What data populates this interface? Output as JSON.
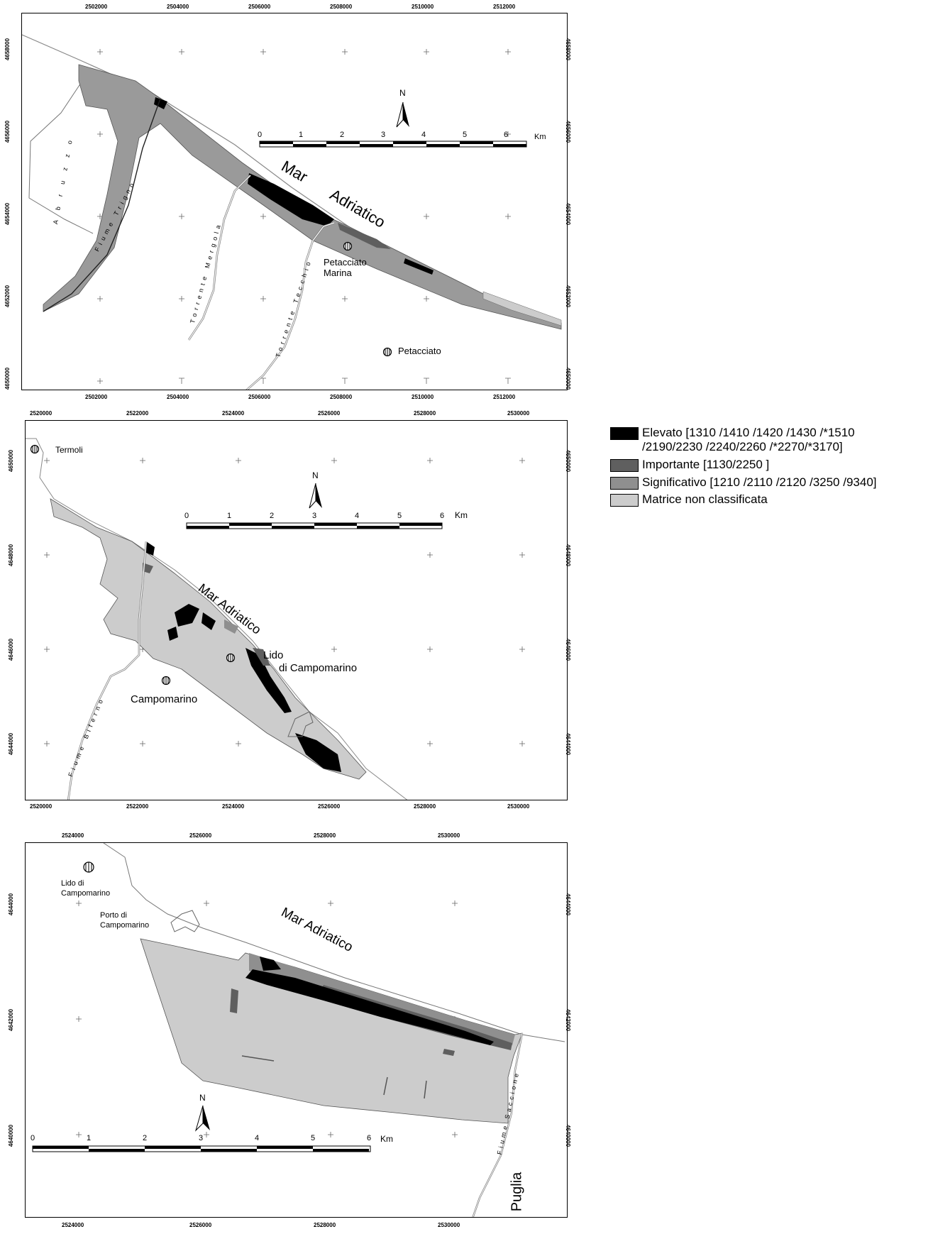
{
  "maps": [
    {
      "id": "map1",
      "top_ticks": [
        "2502000",
        "2504000",
        "2506000",
        "2508000",
        "2510000",
        "2512000"
      ],
      "bottom_ticks": [
        "2502000",
        "2504000",
        "2506000",
        "2508000",
        "2510000",
        "2512000"
      ],
      "left_ticks": [
        "4658000",
        "4656000",
        "4654000",
        "4652000",
        "4650000"
      ],
      "right_ticks": [
        "4658000",
        "4656000",
        "4654000",
        "4652000",
        "4650000"
      ],
      "sea_label_1": "Mar",
      "sea_label_2": "Adriatico",
      "town_1_line1": "Petacciato",
      "town_1_line2": "Marina",
      "town_2": "Petacciato",
      "river_1": "Fiume Trigno",
      "river_2": "Torrente Mergola",
      "river_3": "Torrente Tecchio",
      "river_4": "A b r u z z o",
      "north": "N",
      "scale_numbers": [
        "0",
        "1",
        "2",
        "3",
        "4",
        "5",
        "6"
      ],
      "scale_unit": "Km"
    },
    {
      "id": "map2",
      "top_ticks": [
        "2520000",
        "2522000",
        "2524000",
        "2526000",
        "2528000",
        "2530000"
      ],
      "bottom_ticks": [
        "2520000",
        "2522000",
        "2524000",
        "2526000",
        "2528000",
        "2530000"
      ],
      "left_ticks": [
        "4650000",
        "4648000",
        "4646000",
        "4644000"
      ],
      "right_ticks": [
        "4650000",
        "4648000",
        "4646000",
        "4644000"
      ],
      "sea_label": "Mar Adriatico",
      "town_1": "Termoli",
      "town_2_line1": "Lido",
      "town_2_line2": "di Campomarino",
      "town_3": "Campomarino",
      "river_1": "Fiume Biferno",
      "north": "N",
      "scale_numbers": [
        "0",
        "1",
        "2",
        "3",
        "4",
        "5",
        "6"
      ],
      "scale_unit": "Km"
    },
    {
      "id": "map3",
      "top_ticks": [
        "2524000",
        "2526000",
        "2528000",
        "2530000"
      ],
      "bottom_ticks": [
        "2524000",
        "2526000",
        "2528000",
        "2530000"
      ],
      "left_ticks": [
        "4644000",
        "4642000",
        "4640000"
      ],
      "right_ticks": [
        "4644000",
        "4642000",
        "4640000"
      ],
      "sea_label": "Mar Adriatico",
      "town_1_line1": "Lido di",
      "town_1_line2": "Campomarino",
      "port_line1": "Porto di",
      "port_line2": "Campomarino",
      "river_1": "Fiume Saccione",
      "region": "Puglia",
      "north": "N",
      "scale_numbers": [
        "0",
        "1",
        "2",
        "3",
        "4",
        "5",
        "6"
      ],
      "scale_unit": "Km"
    }
  ],
  "legend": [
    {
      "line1": "Elevato [1310 /1410 /1420 /1430 /*1510",
      "line2": "/2190/2230 /2240/2260 /*2270/*3170]",
      "color": "#000000"
    },
    {
      "line1": "Importante [1130/2250 ]",
      "line2": "",
      "color": "#5f5f5f"
    },
    {
      "line1": "Significativo [1210 /2110 /2120 /3250 /9340]",
      "line2": "",
      "color": "#8f8f8f"
    },
    {
      "line1": "Matrice non classificata",
      "line2": "",
      "color": "#cccccc"
    }
  ]
}
